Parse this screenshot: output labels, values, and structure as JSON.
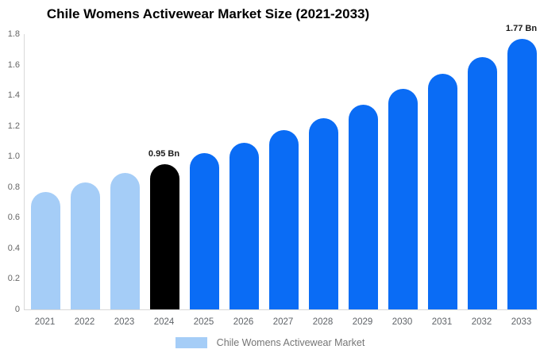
{
  "title": "Chile Womens Activewear Market Size (2021-2033)",
  "colors": {
    "background": "#ffffff",
    "axis_line": "#d9d9d9",
    "tick_text": "#666666",
    "xlabel_text": "#5f6368",
    "annotation_text": "#1a1a1a",
    "legend_text": "#757575",
    "historical_bar": "#A5CDF7",
    "current_bar": "#000000",
    "forecast_bar": "#0A6CF5"
  },
  "chart_data": {
    "type": "bar",
    "title": "Chile Womens Activewear Market Size (2021-2033)",
    "xlabel": "",
    "ylabel": "",
    "unit": "Bn",
    "categories": [
      "2021",
      "2022",
      "2023",
      "2024",
      "2025",
      "2026",
      "2027",
      "2028",
      "2029",
      "2030",
      "2031",
      "2032",
      "2033"
    ],
    "values": [
      0.77,
      0.83,
      0.89,
      0.95,
      1.02,
      1.09,
      1.17,
      1.25,
      1.34,
      1.44,
      1.54,
      1.65,
      1.77
    ],
    "bar_colors": [
      "#A5CDF7",
      "#A5CDF7",
      "#A5CDF7",
      "#000000",
      "#0A6CF5",
      "#0A6CF5",
      "#0A6CF5",
      "#0A6CF5",
      "#0A6CF5",
      "#0A6CF5",
      "#0A6CF5",
      "#0A6CF5",
      "#0A6CF5"
    ],
    "ylim": [
      0,
      1.8
    ],
    "ytick_labels": [
      "1.8",
      "1.6",
      "1.4",
      "1.2",
      "1.0",
      "0.8",
      "0.6",
      "0.4",
      "0.2",
      "0"
    ],
    "grid": false,
    "legend_position": "bottom",
    "annotations": [
      {
        "category": "2024",
        "text": "0.95 Bn"
      },
      {
        "category": "2033",
        "text": "1.77 Bn"
      }
    ],
    "legend": [
      {
        "label": "Chile Womens Activewear Market",
        "color": "#A5CDF7"
      }
    ]
  }
}
